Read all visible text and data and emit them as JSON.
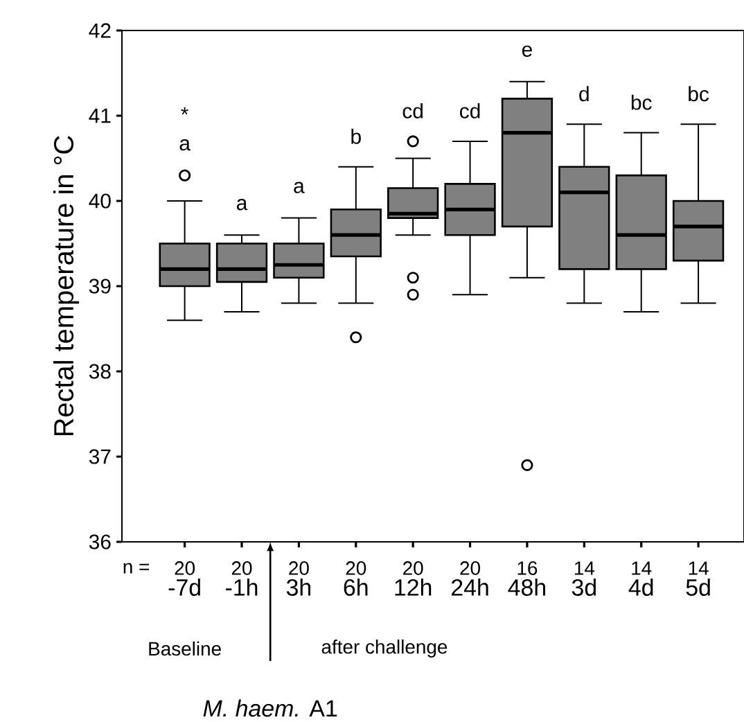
{
  "chart_data": {
    "type": "box",
    "ylabel": "Rectal temperature in °C",
    "categories": [
      "-7d",
      "-1h",
      "3h",
      "6h",
      "12h",
      "24h",
      "48h",
      "3d",
      "4d",
      "5d"
    ],
    "color": "#808080",
    "marker": "circle",
    "boxes": [
      {
        "low": 38.6,
        "q1": 39.0,
        "median": 39.2,
        "q3": 39.5,
        "high": 40.0,
        "outliers": [
          40.3
        ]
      },
      {
        "low": 38.7,
        "q1": 39.05,
        "median": 39.2,
        "q3": 39.5,
        "high": 39.6
      },
      {
        "low": 38.8,
        "q1": 39.1,
        "median": 39.25,
        "q3": 39.5,
        "high": 39.8
      },
      {
        "low": 38.8,
        "q1": 39.35,
        "median": 39.6,
        "q3": 39.9,
        "high": 40.4,
        "outliers": [
          38.4
        ]
      },
      {
        "low": 39.6,
        "q1": 39.8,
        "median": 39.85,
        "q3": 40.15,
        "high": 40.5,
        "outliers": [
          40.7,
          39.1,
          38.9
        ]
      },
      {
        "low": 38.9,
        "q1": 39.6,
        "median": 39.9,
        "q3": 40.2,
        "high": 40.7
      },
      {
        "low": 39.1,
        "q1": 39.7,
        "median": 40.8,
        "q3": 41.2,
        "high": 41.4,
        "outliers": [
          36.9
        ]
      },
      {
        "low": 38.8,
        "q1": 39.2,
        "median": 40.1,
        "q3": 40.4,
        "high": 40.9
      },
      {
        "low": 38.7,
        "q1": 39.2,
        "median": 39.6,
        "q3": 40.3,
        "high": 40.8
      },
      {
        "low": 38.8,
        "q1": 39.3,
        "median": 39.7,
        "q3": 40.0,
        "high": 40.9
      }
    ],
    "ylim": [
      36,
      42
    ],
    "yticks": [
      36,
      37,
      38,
      39,
      40,
      41,
      42
    ],
    "annotations": [
      "*",
      "a",
      "a",
      "a",
      "b",
      "cd",
      "cd",
      "e",
      "d",
      "bc",
      "bc",
      "n =",
      "20",
      "20",
      "20",
      "20",
      "20",
      "20",
      "16",
      "14",
      "14",
      "14",
      "Baseline",
      "after challenge",
      "*M. haem.* A1"
    ]
  }
}
